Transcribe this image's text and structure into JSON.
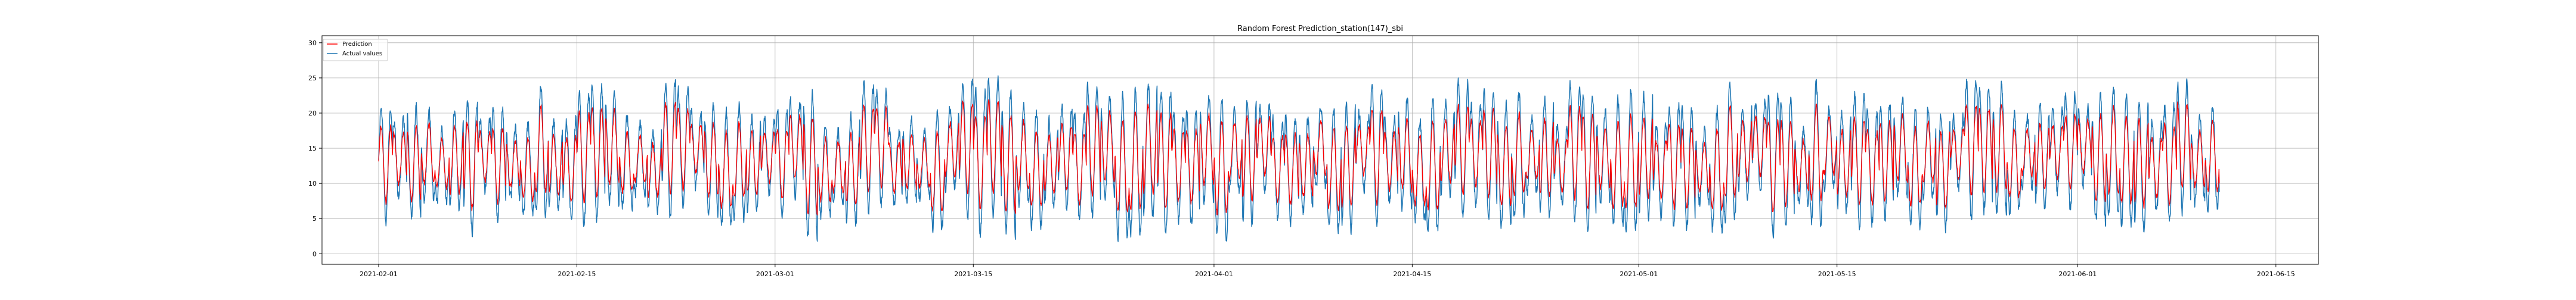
{
  "chart_data": {
    "type": "line",
    "title": "Random Forest Prediction_station(147)_sbi",
    "xlabel": "",
    "ylabel": "",
    "x_range": [
      "2021-01-17",
      "2021-06-18"
    ],
    "xlim": [
      "2021-01-28",
      "2021-06-18"
    ],
    "ylim": [
      -1.5,
      31
    ],
    "x_ticks": [
      "2021-02-01",
      "2021-02-15",
      "2021-03-01",
      "2021-03-15",
      "2021-04-01",
      "2021-04-15",
      "2021-05-01",
      "2021-05-15",
      "2021-06-01",
      "2021-06-15"
    ],
    "y_ticks": [
      0,
      5,
      10,
      15,
      20,
      25,
      30
    ],
    "grid": true,
    "legend_position": "top-left",
    "x_data_range": [
      "2021-02-01",
      "2021-06-11"
    ],
    "series": [
      {
        "name": "Prediction",
        "color": "#ff0000",
        "stroke_width": 1.3,
        "baseline": 13.5,
        "daily_amplitude": 6.0,
        "noise_level": 0.7,
        "observations_per_day": 48
      },
      {
        "name": "Actual values",
        "color": "#1f77b4",
        "stroke_width": 1.5,
        "baseline": 13.5,
        "daily_amplitude": 9.0,
        "noise_level": 1.3,
        "observations_per_day": 48
      }
    ]
  }
}
